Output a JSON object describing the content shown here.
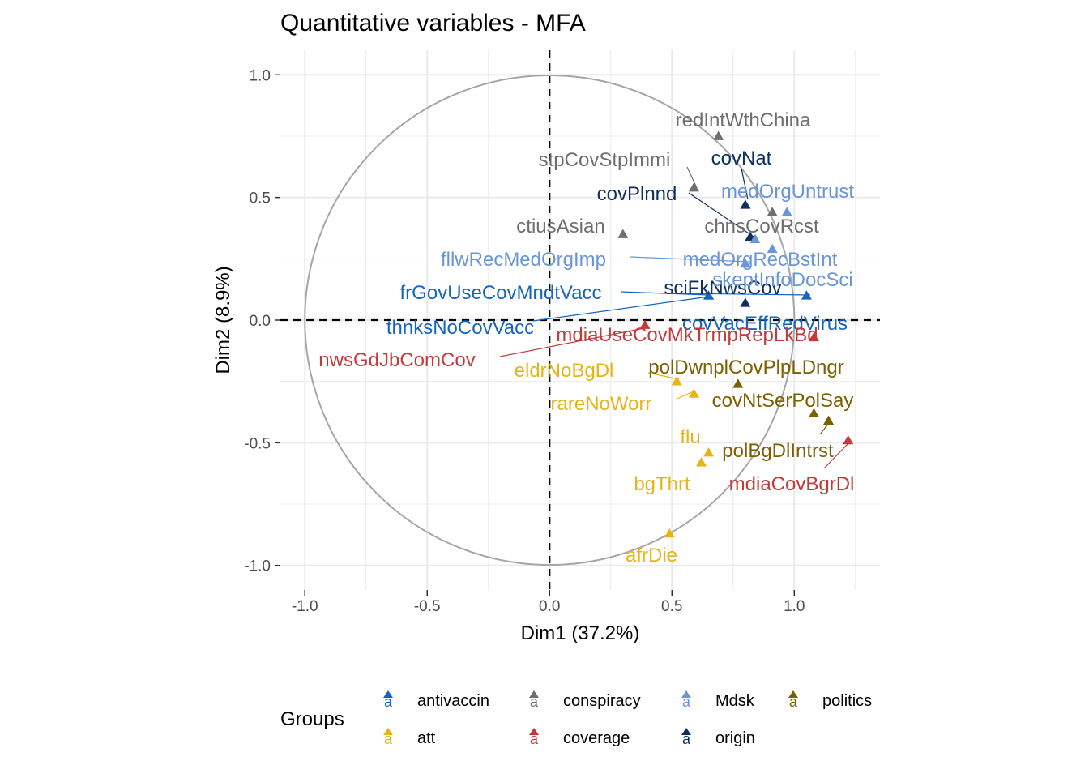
{
  "chart_data": {
    "type": "scatter",
    "title": "Quantitative variables - MFA",
    "xlabel": "Dim1 (37.2%)",
    "ylabel": "Dim2 (8.9%)",
    "xlim": [
      -1.1,
      1.35
    ],
    "ylim": [
      -1.1,
      1.1
    ],
    "x_ticks": [
      -1.0,
      -0.5,
      0.0,
      0.5,
      1.0
    ],
    "x_tick_labels": [
      "-1.0",
      "-0.5",
      "0.0",
      "0.5",
      "1.0"
    ],
    "y_ticks": [
      1.0,
      0.5,
      0.0,
      -0.5,
      -1.0
    ],
    "y_tick_labels": [
      "1.0",
      "0.5",
      "0.0",
      "-0.5",
      "-1.0"
    ],
    "grid": true,
    "unit_circle": true,
    "reference_lines": "dashed at x=0 and y=0",
    "legend": {
      "title": "Groups",
      "position": "bottom",
      "key_glyph": "a",
      "groups": [
        {
          "name": "antivaccin",
          "color": "#1565c0"
        },
        {
          "name": "att",
          "color": "#e6b417"
        },
        {
          "name": "conspiracy",
          "color": "#6e6e6e"
        },
        {
          "name": "coverage",
          "color": "#c23b3b"
        },
        {
          "name": "Mdsk",
          "color": "#6a96d8"
        },
        {
          "name": "origin",
          "color": "#0e2f5c"
        },
        {
          "name": "politics",
          "color": "#7a6000"
        }
      ]
    },
    "points": [
      {
        "name": "redIntWthChina",
        "group": "conspiracy",
        "x": 0.69,
        "y": 0.75
      },
      {
        "name": "stpCovStpImmi",
        "group": "conspiracy",
        "x": 0.59,
        "y": 0.54
      },
      {
        "name": "ctiusAsian",
        "group": "conspiracy",
        "x": 0.3,
        "y": 0.35
      },
      {
        "name": "chnsCovRcst",
        "group": "conspiracy",
        "x": 0.91,
        "y": 0.44
      },
      {
        "name": "covNat",
        "group": "origin",
        "x": 0.8,
        "y": 0.47
      },
      {
        "name": "covPlnnd",
        "group": "origin",
        "x": 0.82,
        "y": 0.34
      },
      {
        "name": "sciFkNwsCov",
        "group": "origin",
        "x": 0.8,
        "y": 0.07
      },
      {
        "name": "medOrgUntrust",
        "group": "Mdsk",
        "x": 0.97,
        "y": 0.44
      },
      {
        "name": "fllwRecMedOrgImp",
        "group": "Mdsk",
        "x": 0.84,
        "y": 0.33
      },
      {
        "name": "medOrgRecBstInt",
        "group": "Mdsk",
        "x": 0.91,
        "y": 0.29
      },
      {
        "name": "skeptInfoDocSci",
        "group": "Mdsk",
        "x": 0.8,
        "y": 0.23
      },
      {
        "name": "frGovUseCovMndtVacc",
        "group": "antivaccin",
        "x": 0.65,
        "y": 0.1
      },
      {
        "name": "thnksNoCovVacc",
        "group": "antivaccin",
        "x": 0.65,
        "y": 0.1
      },
      {
        "name": "covVacEffRedVirus",
        "group": "antivaccin",
        "x": 1.05,
        "y": 0.1
      },
      {
        "name": "mdiaUseCovMkTrmpRepLkBd",
        "group": "coverage",
        "x": 1.08,
        "y": -0.07
      },
      {
        "name": "nwsGdJbComCov",
        "group": "coverage",
        "x": 0.39,
        "y": -0.02
      },
      {
        "name": "mdiaCovBgrDl",
        "group": "coverage",
        "x": 1.22,
        "y": -0.49
      },
      {
        "name": "eldrNoBgDl",
        "group": "att",
        "x": 0.52,
        "y": -0.25
      },
      {
        "name": "rareNoWorr",
        "group": "att",
        "x": 0.59,
        "y": -0.3
      },
      {
        "name": "flu",
        "group": "att",
        "x": 0.65,
        "y": -0.54
      },
      {
        "name": "bgThrt",
        "group": "att",
        "x": 0.62,
        "y": -0.58
      },
      {
        "name": "afrDie",
        "group": "att",
        "x": 0.49,
        "y": -0.87
      },
      {
        "name": "polDwnplCovPlpLDngr",
        "group": "politics",
        "x": 0.77,
        "y": -0.26
      },
      {
        "name": "covNtSerPolSay",
        "group": "politics",
        "x": 1.08,
        "y": -0.38
      },
      {
        "name": "polBgDlIntrst",
        "group": "politics",
        "x": 1.14,
        "y": -0.41
      }
    ]
  }
}
